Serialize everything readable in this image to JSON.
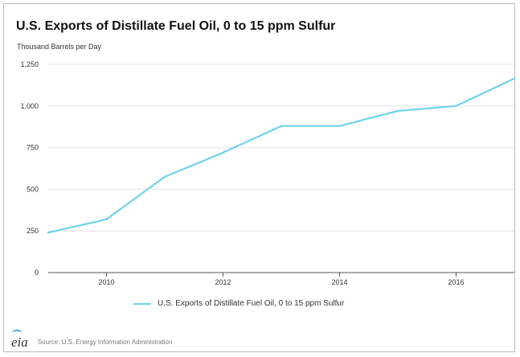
{
  "chart_data": {
    "type": "line",
    "title": "U.S. Exports of Distillate Fuel Oil, 0 to 15 ppm Sulfur",
    "ylabel": "Thousand Barrels per Day",
    "xlabel": "",
    "ylim": [
      0,
      1250
    ],
    "xlim": [
      2009,
      2017
    ],
    "yticks": [
      0,
      250,
      500,
      750,
      1000,
      1250
    ],
    "ytick_labels": [
      "0",
      "250",
      "500",
      "750",
      "1,000",
      "1,250"
    ],
    "xticks": [
      2010,
      2012,
      2014,
      2016
    ],
    "xtick_labels": [
      "2010",
      "2012",
      "2014",
      "2016"
    ],
    "grid": "horizontal",
    "legend_position": "bottom",
    "series": [
      {
        "name": "U.S. Exports of Distillate Fuel Oil, 0 to 15 ppm Sulfur",
        "color": "#6fd3ea",
        "x": [
          2009,
          2010,
          2011,
          2012,
          2013,
          2014,
          2015,
          2016,
          2017
        ],
        "values": [
          240,
          320,
          575,
          720,
          880,
          880,
          970,
          1000,
          1165
        ]
      }
    ]
  },
  "footer": {
    "logo_text": "eia",
    "source": "Source: U.S. Energy Information Administration"
  }
}
